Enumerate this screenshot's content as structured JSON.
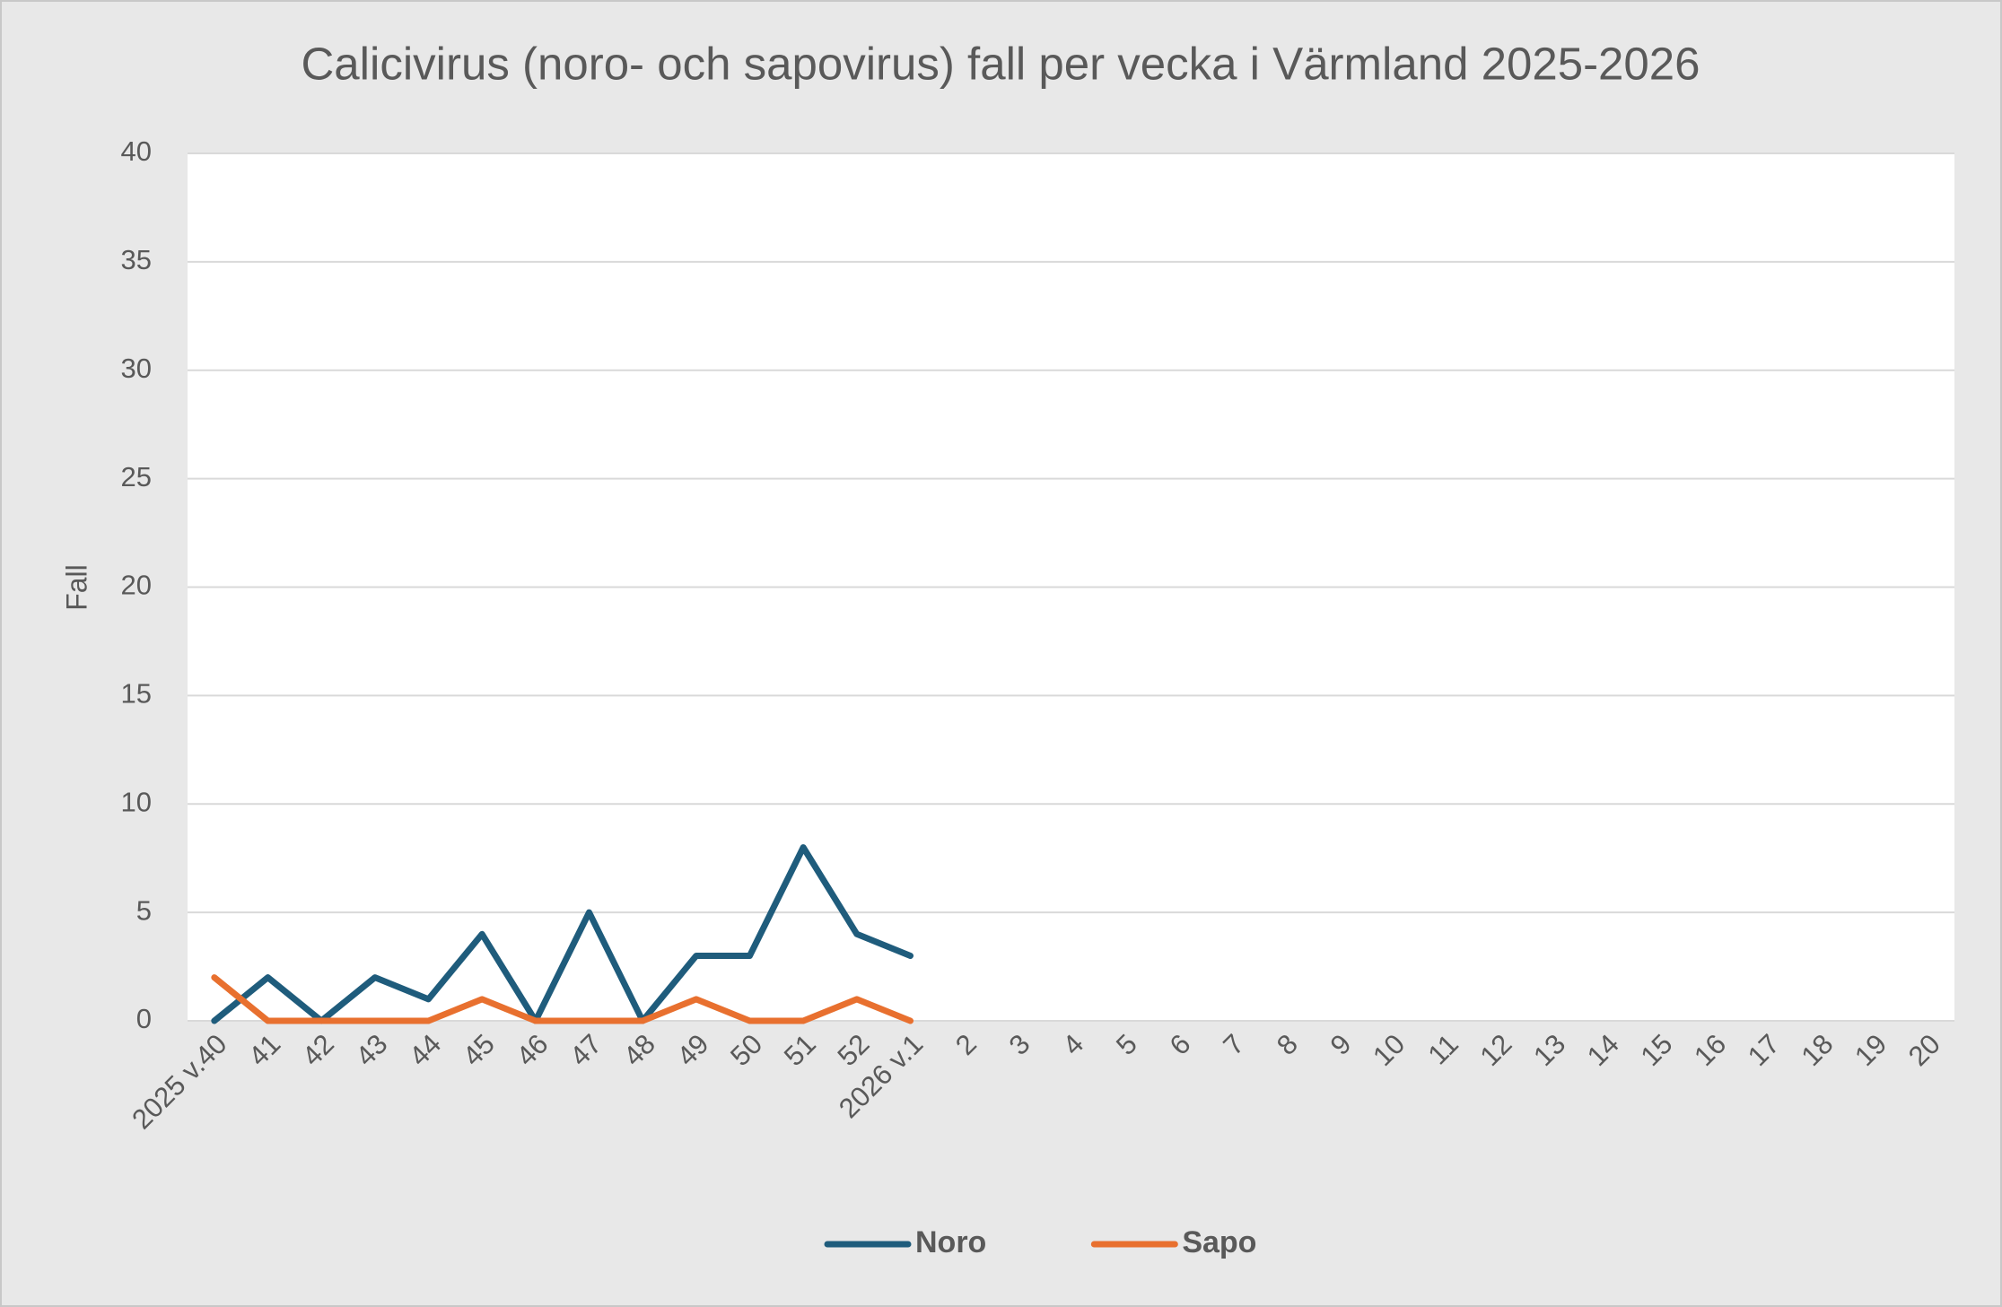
{
  "chart_data": {
    "type": "line",
    "title": "Calicivirus (noro- och sapovirus) fall per vecka i Värmland 2025-2026",
    "y_label": "Fall",
    "categories": [
      "2025 v.40",
      "41",
      "42",
      "43",
      "44",
      "45",
      "46",
      "47",
      "48",
      "49",
      "50",
      "51",
      "52",
      "2026 v.1",
      "2",
      "3",
      "4",
      "5",
      "6",
      "7",
      "8",
      "9",
      "10",
      "11",
      "12",
      "13",
      "14",
      "15",
      "16",
      "17",
      "18",
      "19",
      "20"
    ],
    "series": [
      {
        "name": "Noro",
        "color": "#1f5c7c",
        "values": [
          0,
          2,
          0,
          2,
          1,
          4,
          0,
          5,
          0,
          3,
          3,
          8,
          4,
          3,
          null,
          null,
          null,
          null,
          null,
          null,
          null,
          null,
          null,
          null,
          null,
          null,
          null,
          null,
          null,
          null,
          null,
          null,
          null
        ]
      },
      {
        "name": "Sapo",
        "color": "#e8702f",
        "values": [
          2,
          0,
          0,
          0,
          0,
          1,
          0,
          0,
          0,
          1,
          0,
          0,
          1,
          0,
          null,
          null,
          null,
          null,
          null,
          null,
          null,
          null,
          null,
          null,
          null,
          null,
          null,
          null,
          null,
          null,
          null,
          null,
          null
        ]
      }
    ],
    "ylim": [
      0,
      40
    ],
    "yticks": [
      0,
      5,
      10,
      15,
      20,
      25,
      30,
      35,
      40
    ],
    "grid": true,
    "legend": "bottom"
  }
}
